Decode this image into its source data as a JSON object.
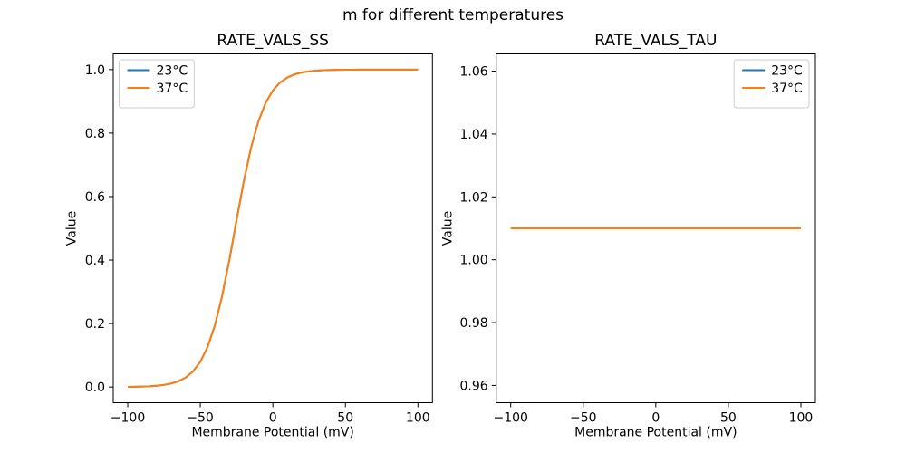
{
  "figure": {
    "suptitle": "m for different temperatures",
    "background": "#ffffff",
    "text_color": "#000000",
    "spine_color": "#000000",
    "legend_border_color": "#cccccc"
  },
  "chart_data": [
    {
      "type": "line",
      "title": "RATE_VALS_SS",
      "xlabel": "Membrane Potential (mV)",
      "ylabel": "Value",
      "xlim": [
        -110,
        110
      ],
      "ylim": [
        -0.0495,
        1.0495
      ],
      "xticks": [
        -100,
        -50,
        0,
        50,
        100
      ],
      "xtick_labels": [
        "−100",
        "−50",
        "0",
        "50",
        "100"
      ],
      "yticks": [
        0.0,
        0.2,
        0.4,
        0.6,
        0.8,
        1.0
      ],
      "ytick_labels": [
        "0.0",
        "0.2",
        "0.4",
        "0.6",
        "0.8",
        "1.0"
      ],
      "grid": false,
      "legend_loc": "upper-left",
      "x": [
        -100,
        -95,
        -90,
        -85,
        -80,
        -75,
        -70,
        -65,
        -60,
        -55,
        -50,
        -45,
        -40,
        -35,
        -30,
        -25,
        -20,
        -15,
        -10,
        -5,
        0,
        5,
        10,
        15,
        20,
        25,
        30,
        35,
        40,
        45,
        50,
        55,
        60,
        65,
        70,
        75,
        80,
        85,
        90,
        95,
        100
      ],
      "series": [
        {
          "name": "23°C",
          "color": "#1f77b4",
          "values": [
            0.0005,
            0.0009,
            0.0015,
            0.0024,
            0.004,
            0.0067,
            0.0111,
            0.0183,
            0.0302,
            0.0493,
            0.0795,
            0.1258,
            0.1933,
            0.2853,
            0.3993,
            0.5255,
            0.6485,
            0.7544,
            0.8365,
            0.895,
            0.9343,
            0.9594,
            0.9752,
            0.985,
            0.991,
            0.9945,
            0.9967,
            0.998,
            0.9988,
            0.9993,
            0.9996,
            0.9997,
            0.9998,
            0.9999,
            0.9999,
            1.0,
            1.0,
            1.0,
            1.0,
            1.0,
            1.0
          ]
        },
        {
          "name": "37°C",
          "color": "#ff7f0e",
          "values": [
            0.0005,
            0.0009,
            0.0015,
            0.0024,
            0.004,
            0.0067,
            0.0111,
            0.0183,
            0.0302,
            0.0493,
            0.0795,
            0.1258,
            0.1933,
            0.2853,
            0.3993,
            0.5255,
            0.6485,
            0.7544,
            0.8365,
            0.895,
            0.9343,
            0.9594,
            0.9752,
            0.985,
            0.991,
            0.9945,
            0.9967,
            0.998,
            0.9988,
            0.9993,
            0.9996,
            0.9997,
            0.9998,
            0.9999,
            0.9999,
            1.0,
            1.0,
            1.0,
            1.0,
            1.0,
            1.0
          ]
        }
      ]
    },
    {
      "type": "line",
      "title": "RATE_VALS_TAU",
      "xlabel": "Membrane Potential (mV)",
      "ylabel": "Value",
      "xlim": [
        -110,
        110
      ],
      "ylim": [
        0.9545,
        1.0655
      ],
      "xticks": [
        -100,
        -50,
        0,
        50,
        100
      ],
      "xtick_labels": [
        "−100",
        "−50",
        "0",
        "50",
        "100"
      ],
      "yticks": [
        0.96,
        0.98,
        1.0,
        1.02,
        1.04,
        1.06
      ],
      "ytick_labels": [
        "0.96",
        "0.98",
        "1.00",
        "1.02",
        "1.04",
        "1.06"
      ],
      "grid": false,
      "legend_loc": "upper-right",
      "x": [
        -100,
        100
      ],
      "series": [
        {
          "name": "23°C",
          "color": "#1f77b4",
          "values": [
            1.01,
            1.01
          ]
        },
        {
          "name": "37°C",
          "color": "#ff7f0e",
          "values": [
            1.01,
            1.01
          ]
        }
      ]
    }
  ]
}
